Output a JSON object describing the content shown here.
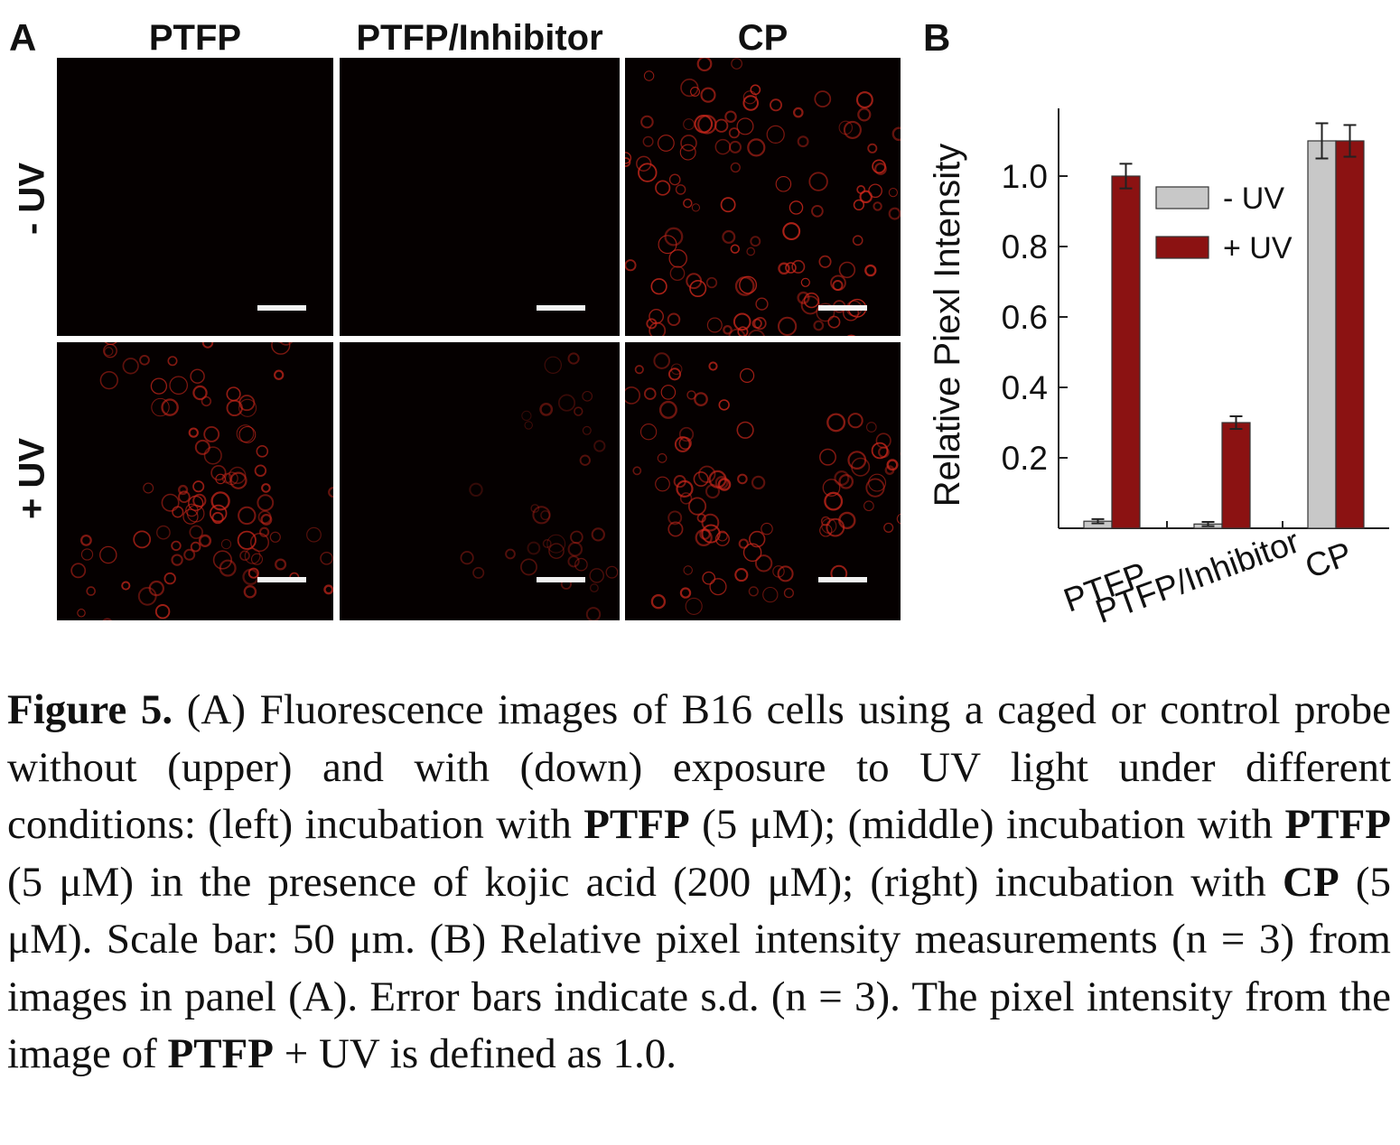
{
  "panel_a": {
    "label": "A",
    "columns": [
      "PTFP",
      "PTFP/Inhibitor",
      "CP"
    ],
    "rows": [
      "- UV",
      "+ UV"
    ]
  },
  "panel_b": {
    "label": "B"
  },
  "colors": {
    "minus_uv": "#c8c8c8",
    "plus_uv": "#8b1212",
    "cells": "#d0281c"
  },
  "chart_data": {
    "type": "bar",
    "categories": [
      "PTFP",
      "PTFP/Inhibitor",
      "CP"
    ],
    "ylabel": "Relative Piexl Intensity",
    "yticks": [
      "0.2",
      "0.4",
      "0.6",
      "0.8",
      "1.0"
    ],
    "ylim": [
      0,
      1.2
    ],
    "legend_position": "upper-middle",
    "series": [
      {
        "name": "- UV",
        "color": "#c8c8c8",
        "values": [
          0.02,
          0.012,
          1.1
        ],
        "errors": [
          0.006,
          0.006,
          0.05
        ]
      },
      {
        "name": "+ UV",
        "color": "#8b1212",
        "values": [
          1.0,
          0.3,
          1.1
        ],
        "errors": [
          0.035,
          0.018,
          0.045
        ]
      }
    ]
  },
  "caption": {
    "label": "Figure 5.",
    "t1": " (A) Fluorescence images of B16 cells using a caged or control probe without (upper) and with (down) exposure to UV light under different conditions: (left) incubation with ",
    "b1": "PTFP",
    "t2": " (5 μM); (middle) incubation with ",
    "b2": "PTFP",
    "t3": " (5 μM) in the presence of kojic acid (200 μM); (right) incubation with ",
    "b3": "CP",
    "t4": " (5 μM). Scale bar: 50 μm. (B) Relative pixel intensity measurements (n = 3) from images in panel (A). Error bars indicate s.d. (n = 3). The pixel intensity from the image of ",
    "b4": "PTFP",
    "t5": " + UV is defined as 1.0."
  }
}
